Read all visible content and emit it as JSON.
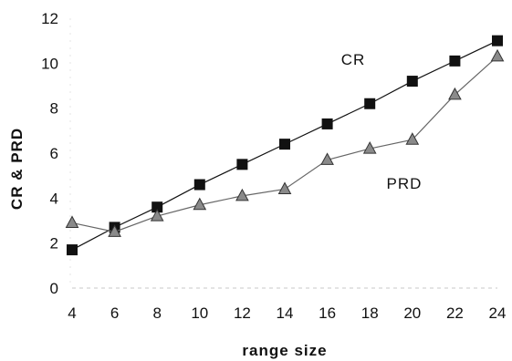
{
  "chart_data": {
    "type": "line",
    "title": "",
    "xlabel": "range size",
    "ylabel": "CR & PRD",
    "x": [
      4,
      6,
      8,
      10,
      12,
      14,
      16,
      18,
      20,
      22,
      24
    ],
    "xlim": [
      4,
      24
    ],
    "ylim": [
      0,
      12
    ],
    "x_ticks": [
      "4",
      "6",
      "8",
      "10",
      "12",
      "14",
      "16",
      "18",
      "20",
      "22",
      "24"
    ],
    "y_ticks": [
      "0",
      "2",
      "4",
      "6",
      "8",
      "10",
      "12"
    ],
    "grid": false,
    "legend": "none",
    "series": [
      {
        "name": "CR",
        "marker": "square",
        "color": "#111111",
        "values": [
          1.7,
          2.7,
          3.6,
          4.6,
          5.5,
          6.4,
          7.3,
          8.2,
          9.2,
          10.1,
          11.0
        ]
      },
      {
        "name": "PRD",
        "marker": "triangle",
        "color": "#666666",
        "values": [
          2.9,
          2.5,
          3.2,
          3.7,
          4.1,
          4.4,
          5.7,
          6.2,
          6.6,
          8.6,
          10.3
        ]
      }
    ]
  }
}
